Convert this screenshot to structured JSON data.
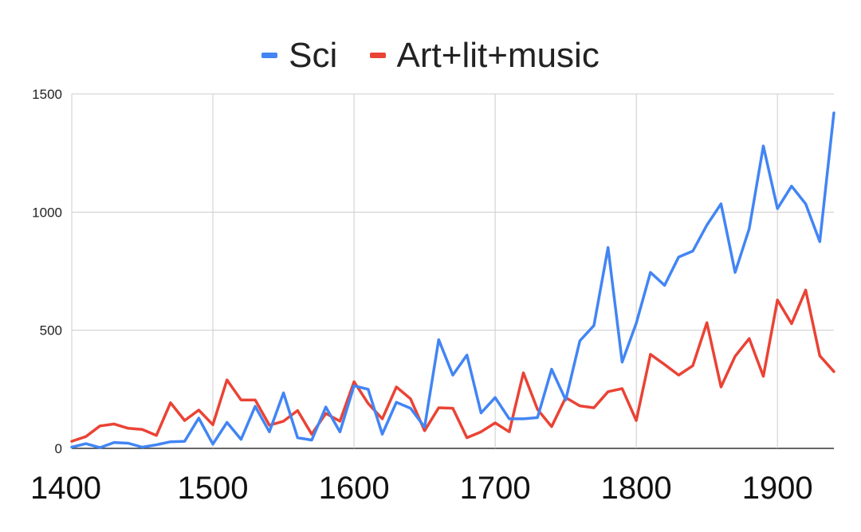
{
  "chart_data": {
    "type": "line",
    "title": "",
    "xlabel": "",
    "ylabel": "",
    "xlim": [
      1400,
      1940
    ],
    "ylim": [
      0,
      1500
    ],
    "grid": true,
    "legend_position": "top-center",
    "yticks": [
      "0",
      "500",
      "1000",
      "1500"
    ],
    "xticks": [
      "1400",
      "1500",
      "1600",
      "1700",
      "1800",
      "1900"
    ],
    "x": [
      1400,
      1410,
      1420,
      1430,
      1440,
      1450,
      1460,
      1470,
      1480,
      1490,
      1500,
      1510,
      1520,
      1530,
      1540,
      1550,
      1560,
      1570,
      1580,
      1590,
      1600,
      1610,
      1620,
      1630,
      1640,
      1650,
      1660,
      1670,
      1680,
      1690,
      1700,
      1710,
      1720,
      1730,
      1740,
      1750,
      1760,
      1770,
      1780,
      1790,
      1800,
      1810,
      1820,
      1830,
      1840,
      1850,
      1860,
      1870,
      1880,
      1890,
      1900,
      1910,
      1920,
      1930,
      1940
    ],
    "series": [
      {
        "name": "Sci",
        "color": "#4285f4",
        "values": [
          5,
          20,
          3,
          25,
          22,
          5,
          15,
          28,
          30,
          128,
          18,
          110,
          38,
          178,
          70,
          235,
          45,
          35,
          175,
          70,
          265,
          250,
          60,
          195,
          170,
          90,
          460,
          310,
          395,
          150,
          215,
          125,
          125,
          130,
          335,
          205,
          455,
          520,
          850,
          365,
          530,
          745,
          690,
          810,
          835,
          945,
          1035,
          745,
          930,
          1280,
          1015,
          1110,
          1035,
          875,
          1420
        ]
      },
      {
        "name": "Art+lit+music",
        "color": "#ea4335",
        "values": [
          30,
          50,
          95,
          103,
          85,
          80,
          55,
          193,
          118,
          162,
          100,
          290,
          205,
          205,
          98,
          115,
          160,
          60,
          148,
          115,
          282,
          190,
          125,
          260,
          210,
          75,
          172,
          170,
          45,
          70,
          108,
          70,
          320,
          165,
          92,
          215,
          180,
          172,
          240,
          253,
          118,
          398,
          355,
          310,
          350,
          532,
          260,
          390,
          465,
          305,
          628,
          528,
          670,
          392,
          325
        ]
      }
    ]
  }
}
